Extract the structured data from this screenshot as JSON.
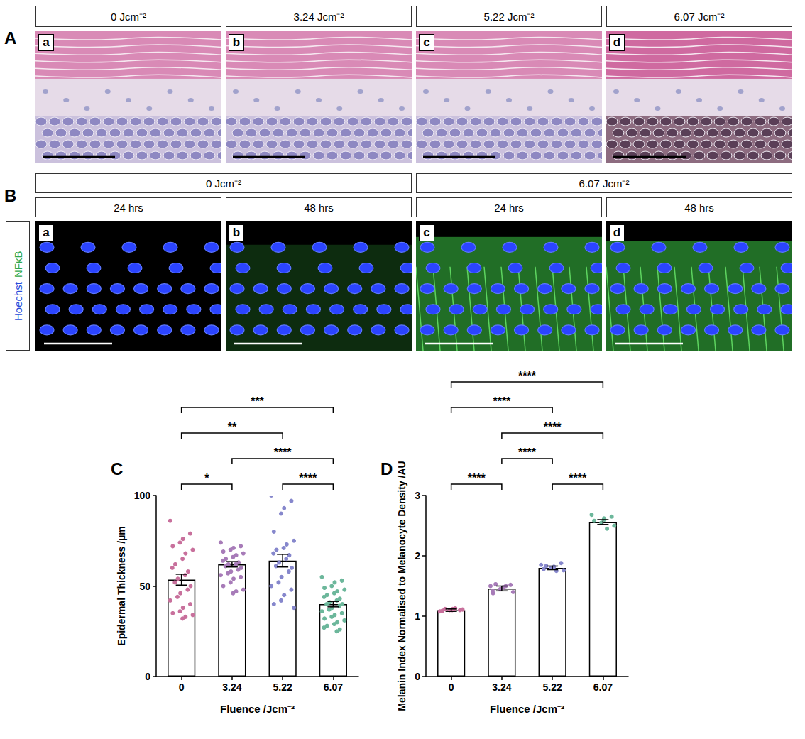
{
  "figure": {
    "A": {
      "panel": "A",
      "columns": [
        {
          "label": "a",
          "title": "0 Jcm⁻²"
        },
        {
          "label": "b",
          "title": "3.24 Jcm⁻²"
        },
        {
          "label": "c",
          "title": "5.22 Jcm⁻²"
        },
        {
          "label": "d",
          "title": "6.07 Jcm⁻²"
        }
      ]
    },
    "B": {
      "panel": "B",
      "stains": [
        {
          "name": "Hoechst",
          "color": "#2b4bd8"
        },
        {
          "name": "NFκB",
          "color": "#2ea84a"
        }
      ],
      "groups": [
        {
          "title": "0 Jcm⁻²",
          "columns": [
            {
              "label": "a",
              "title": "24 hrs"
            },
            {
              "label": "b",
              "title": "48 hrs"
            }
          ]
        },
        {
          "title": "6.07 Jcm⁻²",
          "columns": [
            {
              "label": "c",
              "title": "24 hrs"
            },
            {
              "label": "d",
              "title": "48 hrs"
            }
          ]
        }
      ]
    }
  },
  "chart_data": [
    {
      "panel": "C",
      "type": "bar",
      "xlabel": "Fluence /Jcm⁻²",
      "ylabel": "Epidermal Thickness /µm",
      "categories": [
        "0",
        "3.24",
        "5.22",
        "6.07"
      ],
      "values": [
        53.5,
        62,
        64,
        40
      ],
      "errors": [
        3,
        1.5,
        3.5,
        1.5
      ],
      "points": [
        [
          86,
          79,
          76,
          74,
          72,
          70,
          68,
          65,
          62,
          60,
          58,
          56,
          54,
          52,
          50,
          48,
          46,
          44,
          42,
          40,
          38,
          36,
          35,
          34,
          33,
          32
        ],
        [
          74,
          72,
          71,
          70,
          69,
          68,
          67,
          66,
          65,
          64,
          63,
          62,
          62,
          61,
          60,
          59,
          58,
          57,
          56,
          55,
          54,
          52,
          50,
          48,
          47,
          46
        ],
        [
          100,
          97,
          93,
          90,
          80,
          75,
          73,
          71,
          70,
          68,
          67,
          65,
          63,
          61,
          60,
          58,
          55,
          52,
          50,
          48,
          45,
          42,
          40,
          38
        ],
        [
          55,
          53,
          52,
          50,
          49,
          48,
          47,
          46,
          45,
          44,
          43,
          42,
          41,
          40,
          40,
          39,
          38,
          37,
          36,
          35,
          34,
          33,
          32,
          31,
          30,
          29,
          28,
          27,
          26,
          25
        ]
      ],
      "colors": [
        "#c8709c",
        "#a77bb8",
        "#8687cc",
        "#6cb79b"
      ],
      "ylim": [
        0,
        100
      ],
      "yticks": [
        0,
        50,
        100
      ],
      "grid": false,
      "significance": [
        {
          "pair": [
            "0",
            "6.07"
          ],
          "label": "***"
        },
        {
          "pair": [
            "3.24",
            "6.07"
          ],
          "label": "****"
        },
        {
          "pair": [
            "0",
            "5.22"
          ],
          "label": "**"
        },
        {
          "pair": [
            "0",
            "3.24"
          ],
          "label": "*"
        },
        {
          "pair": [
            "5.22",
            "6.07"
          ],
          "label": "****"
        }
      ]
    },
    {
      "panel": "D",
      "type": "bar",
      "xlabel": "Fluence /Jcm⁻²",
      "ylabel": "Melanin Index Normalised to Melanocyte Density /AU",
      "categories": [
        "0",
        "3.24",
        "5.22",
        "6.07"
      ],
      "values": [
        1.1,
        1.46,
        1.8,
        2.56
      ],
      "errors": [
        0.02,
        0.04,
        0.03,
        0.04
      ],
      "points": [
        [
          1.08,
          1.1,
          1.12,
          1.1,
          1.09,
          1.11,
          1.13,
          1.1,
          1.12
        ],
        [
          1.5,
          1.52,
          1.48,
          1.45,
          1.38,
          1.4,
          1.5,
          1.47,
          1.53,
          1.42
        ],
        [
          1.85,
          1.88,
          1.82,
          1.8,
          1.78,
          1.76,
          1.75,
          1.8,
          1.83
        ],
        [
          2.68,
          2.65,
          2.6,
          2.55,
          2.58,
          2.5,
          2.45,
          2.62
        ]
      ],
      "colors": [
        "#c8709c",
        "#a77bb8",
        "#8687cc",
        "#6cb79b"
      ],
      "ylim": [
        0,
        3
      ],
      "yticks": [
        0,
        1,
        2,
        3
      ],
      "grid": false,
      "significance": [
        {
          "pair": [
            "0",
            "6.07"
          ],
          "label": "****"
        },
        {
          "pair": [
            "3.24",
            "6.07"
          ],
          "label": "****"
        },
        {
          "pair": [
            "0",
            "5.22"
          ],
          "label": "****"
        },
        {
          "pair": [
            "5.22",
            "6.07"
          ],
          "label": "****"
        },
        {
          "pair": [
            "3.24",
            "5.22"
          ],
          "label": "****"
        },
        {
          "pair": [
            "0",
            "3.24"
          ],
          "label": "****"
        }
      ]
    }
  ]
}
